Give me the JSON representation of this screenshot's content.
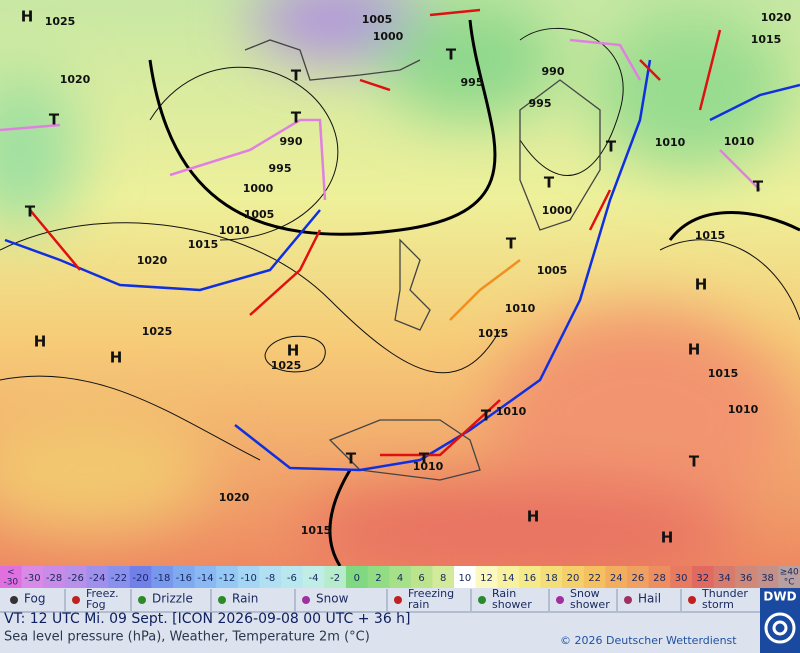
{
  "map": {
    "pressure_labels": [
      "1025",
      "1005",
      "1000",
      "1020",
      "1015",
      "1020",
      "995",
      "990",
      "995",
      "990",
      "995",
      "1000",
      "1005",
      "1010",
      "1015",
      "1020",
      "1010",
      "1010",
      "1000",
      "1015",
      "1005",
      "1010",
      "1015",
      "1025",
      "1025",
      "1015",
      "1010",
      "1010",
      "1010",
      "1020",
      "1015"
    ],
    "centers": [
      "H",
      "H",
      "H",
      "H",
      "H",
      "H",
      "H",
      "H",
      "T",
      "T",
      "T",
      "T",
      "T",
      "T",
      "T",
      "T",
      "T",
      "T",
      "T",
      "T",
      "T"
    ]
  },
  "scale": {
    "cells": [
      [
        "<",
        "-30"
      ],
      [
        "-30"
      ],
      [
        "-28"
      ],
      [
        "-26"
      ],
      [
        "-24"
      ],
      [
        "-22"
      ],
      [
        "-20"
      ],
      [
        "-18"
      ],
      [
        "-16"
      ],
      [
        "-14"
      ],
      [
        "-12"
      ],
      [
        "-10"
      ],
      [
        "-8"
      ],
      [
        "-6"
      ],
      [
        "-4"
      ],
      [
        "-2"
      ],
      [
        "0"
      ],
      [
        "2"
      ],
      [
        "4"
      ],
      [
        "6"
      ],
      [
        "8"
      ],
      [
        "10"
      ],
      [
        "12"
      ],
      [
        "14"
      ],
      [
        "16"
      ],
      [
        "18"
      ],
      [
        "20"
      ],
      [
        "22"
      ],
      [
        "24"
      ],
      [
        "26"
      ],
      [
        "28"
      ],
      [
        "30"
      ],
      [
        "32"
      ],
      [
        "34"
      ],
      [
        "36"
      ],
      [
        "38"
      ],
      [
        "≥40",
        "°C"
      ]
    ],
    "colors": [
      "#e070e0",
      "#d98ae6",
      "#c98ae8",
      "#b890ea",
      "#a090ec",
      "#8a90ee",
      "#7080e8",
      "#7898ee",
      "#80aaf0",
      "#8ab8f2",
      "#96c8f4",
      "#a4d6f4",
      "#b0e0f2",
      "#b8e8ee",
      "#c0eee6",
      "#b6eccc",
      "#80d880",
      "#92dc84",
      "#a6e088",
      "#bce48c",
      "#d2ea9a",
      "#ffffff",
      "#fbf8c0",
      "#f8f2a0",
      "#f6ea88",
      "#f4de78",
      "#f4cf6a",
      "#f4c060",
      "#f2ae5e",
      "#f0a060",
      "#ee8e60",
      "#e87a60",
      "#e06a60",
      "#d87a6c",
      "#d08878",
      "#c49088",
      "#b8a0a0"
    ]
  },
  "legend": [
    [
      "Fog"
    ],
    [
      "Freez.",
      "Fog"
    ],
    [
      "Drizzle"
    ],
    [
      "Rain"
    ],
    [
      "Snow"
    ],
    [
      "Freezing",
      "rain"
    ],
    [
      "Rain",
      "shower"
    ],
    [
      "Snow",
      "shower"
    ],
    [
      "Hail"
    ],
    [
      "Thunder",
      "storm"
    ]
  ],
  "footer": {
    "valid_time": "VT: 12 UTC Mi.  09 Sept. [ICON 2026-09-08  00 UTC + 36 h]",
    "subtitle": "Sea level pressure (hPa), Weather, Temperature 2m (°C)",
    "copyright": "© 2026 Deutscher Wetterdienst",
    "logo": "DWD"
  }
}
